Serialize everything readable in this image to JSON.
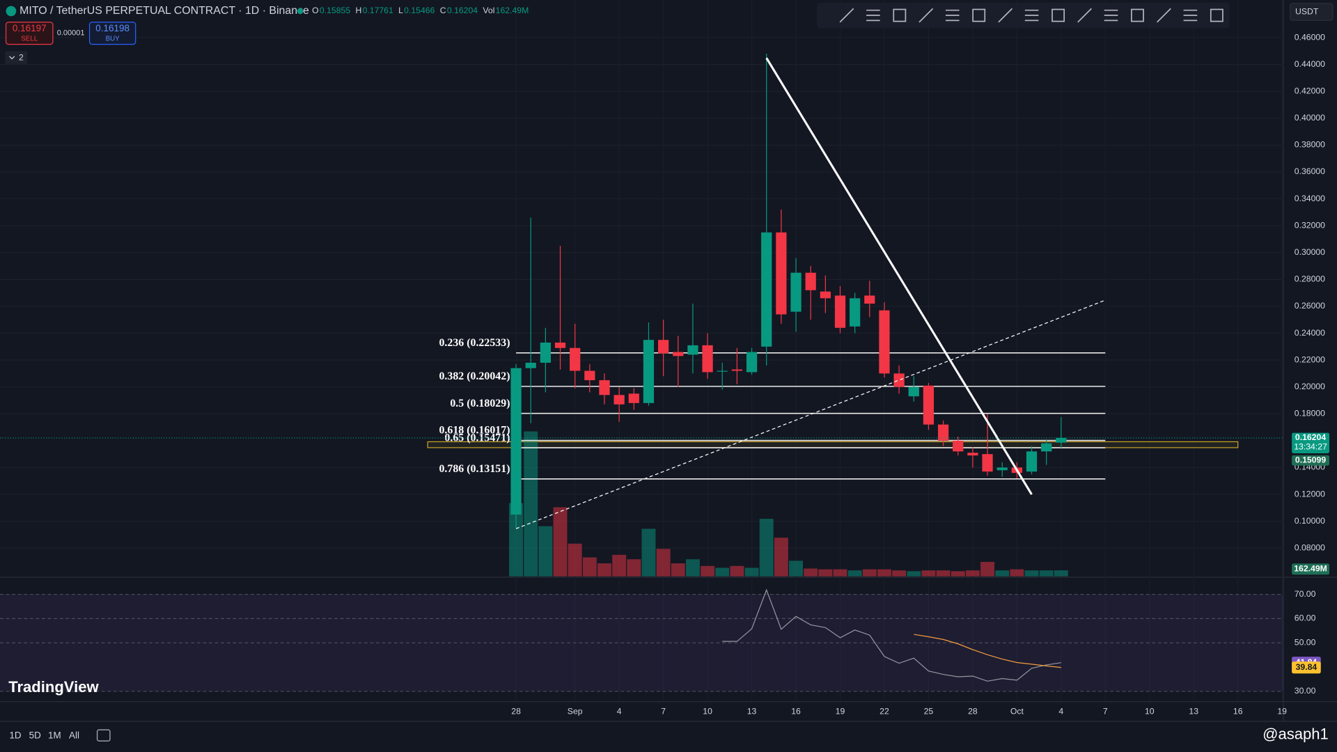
{
  "ui": {
    "symbol": "MITO / TetherUS PERPETUAL CONTRACT · 1D · Binance",
    "ohlc": [
      {
        "key": "O",
        "value": "0.15855"
      },
      {
        "key": "H",
        "value": "0.17761"
      },
      {
        "key": "L",
        "value": "0.15466"
      },
      {
        "key": "C",
        "value": "0.16204"
      },
      {
        "key": "Vol",
        "value": "162.49M"
      }
    ],
    "sell_price": "0.16197",
    "sell": "SELL",
    "spread": "0.00001",
    "buy_price": "0.16198",
    "buy": "BUY",
    "indicator_count": "2",
    "currency": "USDT",
    "countdown": "13:34:27",
    "volume_badge": "162.49M",
    "timeframes": [
      "1D",
      "5D",
      "1M",
      "All"
    ],
    "brand": "TradingView",
    "watermark": "@asaph1"
  },
  "chart_data": {
    "type": "candlestick",
    "x": [
      0,
      1,
      2,
      3,
      4,
      5,
      6,
      7,
      8,
      9,
      10,
      11,
      12,
      13,
      14,
      15,
      16,
      17,
      18,
      19,
      20,
      21,
      22,
      23,
      24,
      25,
      26,
      27,
      28,
      29,
      30,
      31,
      32,
      33,
      34,
      35,
      36,
      37
    ],
    "open": [
      0.105,
      0.214,
      0.218,
      0.233,
      0.229,
      0.212,
      0.205,
      0.194,
      0.195,
      0.188,
      0.235,
      0.226,
      0.224,
      0.231,
      0.212,
      0.213,
      0.211,
      0.23,
      0.315,
      0.256,
      0.285,
      0.271,
      0.268,
      0.245,
      0.268,
      0.257,
      0.21,
      0.193,
      0.201,
      0.172,
      0.16,
      0.151,
      0.15,
      0.138,
      0.14,
      0.137,
      0.152,
      0.15855
    ],
    "high": [
      0.217,
      0.326,
      0.244,
      0.305,
      0.247,
      0.217,
      0.21,
      0.2,
      0.199,
      0.248,
      0.25,
      0.238,
      0.262,
      0.24,
      0.218,
      0.229,
      0.229,
      0.448,
      0.332,
      0.296,
      0.29,
      0.283,
      0.275,
      0.27,
      0.279,
      0.263,
      0.216,
      0.208,
      0.203,
      0.175,
      0.163,
      0.155,
      0.18,
      0.144,
      0.144,
      0.156,
      0.161,
      0.17761
    ],
    "low": [
      0.095,
      0.173,
      0.196,
      0.213,
      0.199,
      0.196,
      0.187,
      0.174,
      0.183,
      0.186,
      0.208,
      0.2,
      0.21,
      0.206,
      0.198,
      0.202,
      0.209,
      0.216,
      0.247,
      0.241,
      0.25,
      0.255,
      0.24,
      0.24,
      0.252,
      0.207,
      0.195,
      0.189,
      0.168,
      0.156,
      0.149,
      0.14,
      0.134,
      0.133,
      0.132,
      0.135,
      0.142,
      0.15466
    ],
    "close": [
      0.214,
      0.218,
      0.233,
      0.229,
      0.212,
      0.205,
      0.194,
      0.187,
      0.188,
      0.235,
      0.225,
      0.223,
      0.231,
      0.211,
      0.212,
      0.212,
      0.226,
      0.315,
      0.254,
      0.285,
      0.272,
      0.266,
      0.244,
      0.266,
      0.262,
      0.21,
      0.2,
      0.2,
      0.172,
      0.16,
      0.152,
      0.149,
      0.137,
      0.14,
      0.136,
      0.152,
      0.158,
      0.16204
    ],
    "volume": [
      1970,
      3900,
      1350,
      1860,
      880,
      510,
      350,
      580,
      460,
      1280,
      740,
      350,
      460,
      280,
      230,
      280,
      230,
      1550,
      1040,
      420,
      210,
      190,
      190,
      160,
      190,
      190,
      160,
      140,
      160,
      160,
      140,
      160,
      390,
      160,
      190,
      160,
      160,
      162.49
    ],
    "up_color": "#089981",
    "down_color": "#f23645",
    "xlim": [
      -35.03,
      52.08
    ],
    "xticks": [
      {
        "value": 0,
        "label": "28"
      },
      {
        "value": 4,
        "label": "Sep"
      },
      {
        "value": 7,
        "label": "4"
      },
      {
        "value": 10,
        "label": "7"
      },
      {
        "value": 13,
        "label": "10"
      },
      {
        "value": 16,
        "label": "13"
      },
      {
        "value": 19,
        "label": "16"
      },
      {
        "value": 22,
        "label": "19"
      },
      {
        "value": 25,
        "label": "22"
      },
      {
        "value": 28,
        "label": "25"
      },
      {
        "value": 31,
        "label": "28"
      },
      {
        "value": 34,
        "label": "Oct"
      },
      {
        "value": 37,
        "label": "4"
      },
      {
        "value": 40,
        "label": "7"
      },
      {
        "value": 43,
        "label": "10"
      },
      {
        "value": 46,
        "label": "13"
      },
      {
        "value": 49,
        "label": "16"
      },
      {
        "value": 52,
        "label": "19"
      }
    ],
    "ylim": [
      0.059,
      0.488
    ],
    "yticks": [
      {
        "value": 0.46,
        "label": "0.46000"
      },
      {
        "value": 0.44,
        "label": "0.44000"
      },
      {
        "value": 0.42,
        "label": "0.42000"
      },
      {
        "value": 0.4,
        "label": "0.40000"
      },
      {
        "value": 0.38,
        "label": "0.38000"
      },
      {
        "value": 0.36,
        "label": "0.36000"
      },
      {
        "value": 0.34,
        "label": "0.34000"
      },
      {
        "value": 0.32,
        "label": "0.32000"
      },
      {
        "value": 0.3,
        "label": "0.30000"
      },
      {
        "value": 0.28,
        "label": "0.28000"
      },
      {
        "value": 0.26,
        "label": "0.26000"
      },
      {
        "value": 0.24,
        "label": "0.24000"
      },
      {
        "value": 0.22,
        "label": "0.22000"
      },
      {
        "value": 0.2,
        "label": "0.20000"
      },
      {
        "value": 0.18,
        "label": "0.18000"
      },
      {
        "value": 0.14,
        "label": "0.14000"
      },
      {
        "value": 0.12,
        "label": "0.12000"
      },
      {
        "value": 0.1,
        "label": "0.10000"
      },
      {
        "value": 0.08,
        "label": "0.08000"
      }
    ],
    "last_price": {
      "value": 0.16204,
      "label": "0.16204"
    },
    "ma_price": {
      "value": 0.15099,
      "label": "0.15099"
    },
    "fib_x": [
      0,
      40
    ],
    "fib_levels": [
      {
        "value": 0.22533,
        "label": "0.236 (0.22533)"
      },
      {
        "value": 0.20042,
        "label": "0.382 (0.20042)"
      },
      {
        "value": 0.18029,
        "label": "0.5 (0.18029)"
      },
      {
        "value": 0.16017,
        "label": "0.618 (0.16017)"
      },
      {
        "value": 0.15471,
        "label": "0.65 (0.15471)"
      },
      {
        "value": 0.13151,
        "label": "0.786 (0.13151)"
      }
    ],
    "trendlines": [
      {
        "x": [
          17,
          35
        ],
        "y": [
          0.4448,
          0.12
        ],
        "style": "solid"
      },
      {
        "x": [
          0,
          40
        ],
        "y": [
          0.0945,
          0.2646
        ],
        "style": "dashed"
      }
    ],
    "zone": {
      "x": [
        -6,
        49
      ],
      "y": [
        0.1548,
        0.1592
      ],
      "color": "#c9a227"
    },
    "rsi": {
      "ylim": [
        26.1,
        76.7
      ],
      "yticks": [
        {
          "value": 70,
          "label": "70.00"
        },
        {
          "value": 60,
          "label": "60.00"
        },
        {
          "value": 50,
          "label": "50.00"
        },
        {
          "value": 30,
          "label": "30.00"
        }
      ],
      "band": [
        30,
        70
      ],
      "series": [
        {
          "color": "#9598a1",
          "values": [
            null,
            null,
            null,
            null,
            null,
            null,
            null,
            null,
            null,
            null,
            null,
            null,
            null,
            null,
            50.6,
            50.6,
            55.8,
            71.8,
            55.6,
            60.9,
            57.4,
            56.3,
            52.1,
            55.3,
            53.2,
            44.4,
            41.6,
            43.7,
            38.4,
            37.0,
            36.0,
            36.3,
            34.2,
            35.3,
            34.6,
            39.5,
            40.9,
            41.84
          ],
          "badge": "#7e57c2"
        },
        {
          "color": "#f59d3d",
          "values": [
            null,
            null,
            null,
            null,
            null,
            null,
            null,
            null,
            null,
            null,
            null,
            null,
            null,
            null,
            null,
            null,
            null,
            null,
            null,
            null,
            null,
            null,
            null,
            null,
            null,
            null,
            null,
            53.5,
            52.5,
            51.4,
            49.6,
            47.2,
            45.1,
            43.3,
            41.9,
            41.2,
            40.5,
            39.84
          ],
          "badge": "#fbc02d"
        }
      ]
    }
  }
}
